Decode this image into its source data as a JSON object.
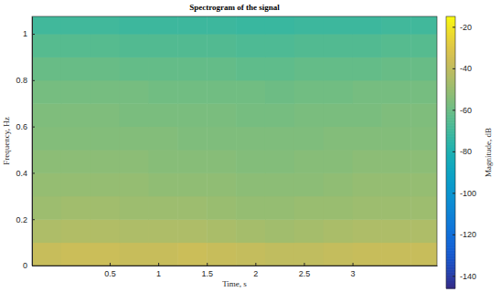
{
  "chart_data": {
    "type": "heatmap",
    "title": "Spectrogram of the signal",
    "x_label": "Time, s",
    "y_label": "Frequency, Hz",
    "xlim": [
      -0.3,
      3.87
    ],
    "ylim": [
      0,
      1.075
    ],
    "xticks": [
      0.5,
      1,
      1.5,
      2,
      2.5,
      3
    ],
    "yticks": [
      0,
      0.2,
      0.4,
      0.6,
      0.8,
      1
    ],
    "heatmap": {
      "x_edges": [
        -0.3,
        0,
        0.3,
        0.6,
        0.9,
        1.2,
        1.5,
        1.8,
        2.1,
        2.4,
        2.7,
        3.0,
        3.3,
        3.6,
        3.87
      ],
      "y_edges": [
        0,
        0.1,
        0.2,
        0.3,
        0.4,
        0.5,
        0.6,
        0.7,
        0.8,
        0.9,
        1.0,
        1.075
      ],
      "values": [
        [
          -38,
          -37,
          -37,
          -38,
          -38,
          -37,
          -38,
          -39,
          -40,
          -40,
          -39,
          -38,
          -38,
          -38
        ],
        [
          -45,
          -44,
          -44,
          -45,
          -45,
          -45,
          -46,
          -47,
          -48,
          -47,
          -46,
          -45,
          -45,
          -45
        ],
        [
          -49,
          -48,
          -48,
          -49,
          -49,
          -49,
          -50,
          -51,
          -51,
          -50,
          -50,
          -49,
          -49,
          -49
        ],
        [
          -51,
          -51,
          -51,
          -51,
          -52,
          -52,
          -52,
          -53,
          -53,
          -53,
          -52,
          -51,
          -51,
          -51
        ],
        [
          -53,
          -53,
          -53,
          -53,
          -54,
          -54,
          -54,
          -55,
          -55,
          -54,
          -54,
          -53,
          -53,
          -53
        ],
        [
          -55,
          -55,
          -55,
          -55,
          -55,
          -56,
          -56,
          -56,
          -56,
          -56,
          -55,
          -55,
          -55,
          -55
        ],
        [
          -56,
          -56,
          -56,
          -57,
          -57,
          -57,
          -57,
          -58,
          -58,
          -57,
          -57,
          -57,
          -56,
          -56
        ],
        [
          -58,
          -58,
          -58,
          -58,
          -59,
          -59,
          -59,
          -59,
          -60,
          -59,
          -59,
          -58,
          -58,
          -58
        ],
        [
          -61,
          -61,
          -61,
          -62,
          -62,
          -62,
          -62,
          -63,
          -63,
          -62,
          -62,
          -62,
          -61,
          -61
        ],
        [
          -65,
          -65,
          -65,
          -66,
          -66,
          -66,
          -66,
          -67,
          -67,
          -66,
          -66,
          -66,
          -65,
          -65
        ],
        [
          -70,
          -70,
          -70,
          -71,
          -71,
          -71,
          -71,
          -72,
          -72,
          -71,
          -71,
          -71,
          -70,
          -70
        ]
      ]
    },
    "colorbar": {
      "label": "Magnitude, dB",
      "range": [
        -146,
        -15
      ],
      "ticks": [
        -140,
        -120,
        -100,
        -80,
        -60,
        -40,
        -20
      ]
    }
  }
}
